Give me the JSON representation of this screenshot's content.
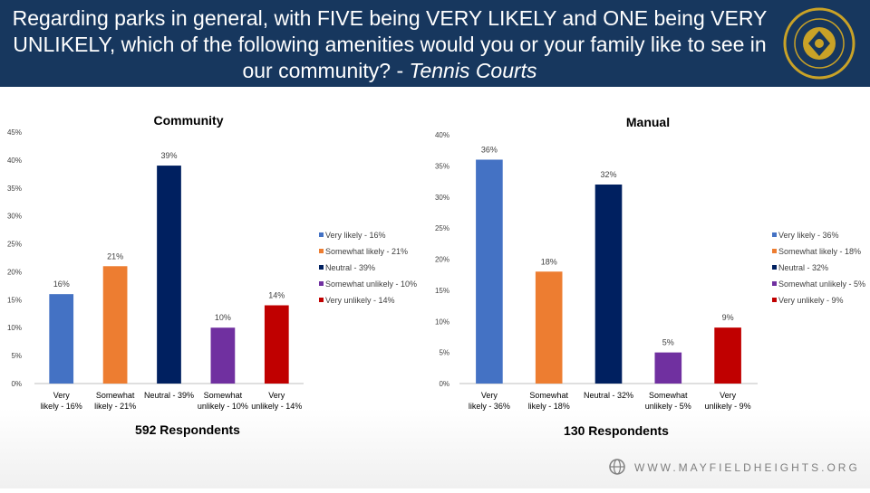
{
  "header": {
    "title": "Regarding parks in general, with FIVE being VERY LIKELY and ONE being VERY UNLIKELY, which of the following amenities would you or your family like to see in our community? - ",
    "title_emphasis": "Tennis Courts",
    "seal_text": "THE CITY OF MAYFIELD HEIGHTS OHIO",
    "seal_icon": "city-seal-icon"
  },
  "footer": {
    "url": "WWW.MAYFIELDHEIGHTS.ORG",
    "icon": "globe-icon"
  },
  "chart_data": [
    {
      "type": "bar",
      "title": "Community",
      "categories": [
        "Very likely - 16%",
        "Somewhat likely - 21%",
        "Neutral - 39%",
        "Somewhat unlikely - 10%",
        "Very unlikely - 14%"
      ],
      "values": [
        16,
        21,
        39,
        10,
        14
      ],
      "value_labels": [
        "16%",
        "21%",
        "39%",
        "10%",
        "14%"
      ],
      "colors": [
        "#4472c4",
        "#ed7d31",
        "#002060",
        "#7030a0",
        "#c00000"
      ],
      "ylim": [
        0,
        45
      ],
      "yticks": [
        "0%",
        "5%",
        "10%",
        "15%",
        "20%",
        "25%",
        "30%",
        "35%",
        "40%",
        "45%"
      ],
      "legend": [
        "Very likely - 16%",
        "Somewhat likely - 21%",
        "Neutral - 39%",
        "Somewhat unlikely - 10%",
        "Very unlikely - 14%"
      ],
      "legend_position": "right",
      "footnote": "592 Respondents"
    },
    {
      "type": "bar",
      "title": "Manual",
      "categories": [
        "Very likely - 36%",
        "Somewhat likely - 18%",
        "Neutral - 32%",
        "Somewhat unlikely - 5%",
        "Very unlikely - 9%"
      ],
      "values": [
        36,
        18,
        32,
        5,
        9
      ],
      "value_labels": [
        "36%",
        "18%",
        "32%",
        "5%",
        "9%"
      ],
      "colors": [
        "#4472c4",
        "#ed7d31",
        "#002060",
        "#7030a0",
        "#c00000"
      ],
      "ylim": [
        0,
        40
      ],
      "yticks": [
        "0%",
        "5%",
        "10%",
        "15%",
        "20%",
        "25%",
        "30%",
        "35%",
        "40%"
      ],
      "legend": [
        "Very likely - 36%",
        "Somewhat likely - 18%",
        "Neutral - 32%",
        "Somewhat unlikely - 5%",
        "Very unlikely - 9%"
      ],
      "legend_position": "right",
      "footnote": "130 Respondents"
    }
  ]
}
